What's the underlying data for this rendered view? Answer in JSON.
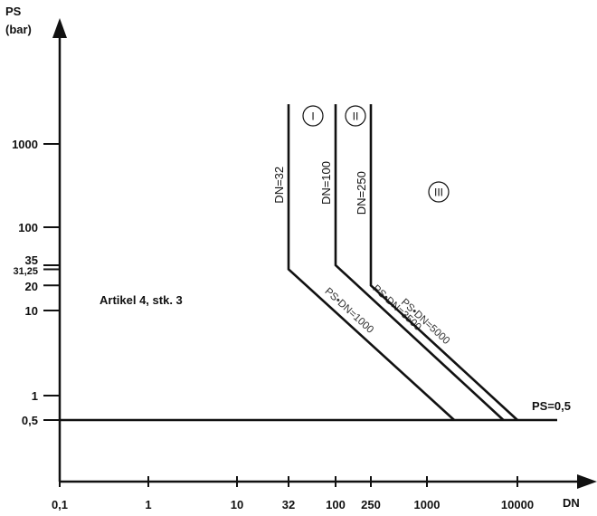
{
  "chart_data": {
    "type": "line",
    "title": "",
    "xlabel": "DN",
    "ylabel": "PS",
    "ylabel_unit": "(bar)",
    "x_scale": "log",
    "y_scale": "log",
    "x_ticks": [
      "0,1",
      "1",
      "10",
      "32",
      "100",
      "250",
      "1000",
      "10000"
    ],
    "y_ticks": [
      "0,5",
      "1",
      "10",
      "20",
      "31,25",
      "35",
      "100",
      "1000"
    ],
    "vertical_lines": [
      {
        "label": "DN=32",
        "dn": 32,
        "ps_from": 31.25
      },
      {
        "label": "DN=100",
        "dn": 100,
        "ps_from": 35
      },
      {
        "label": "DN=250",
        "dn": 250,
        "ps_from": 20
      }
    ],
    "slope_lines": [
      {
        "label": "PS•DN=1000",
        "product": 1000
      },
      {
        "label": "PS•DN=3500",
        "product": 3500
      },
      {
        "label": "PS•DN=5000",
        "product": 5000
      }
    ],
    "horizontal_line": {
      "label": "PS=0,5",
      "ps": 0.5
    },
    "categories": [
      "I",
      "II",
      "III"
    ],
    "annotation": "Artikel 4, stk. 3"
  },
  "colors": {
    "line": "#111111",
    "text": "#111111",
    "label_gray": "#333333"
  }
}
